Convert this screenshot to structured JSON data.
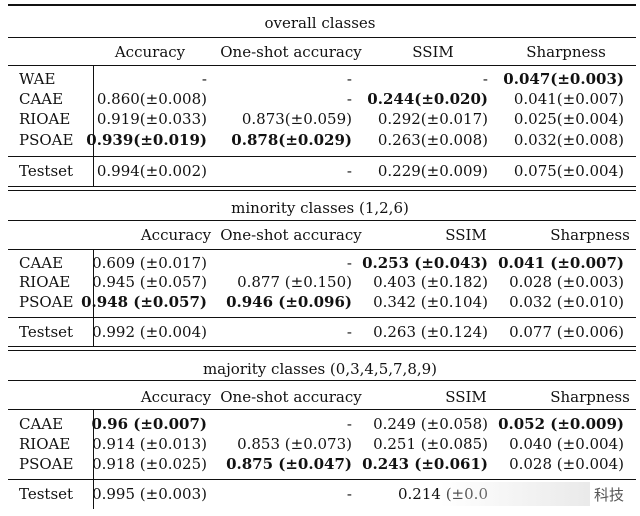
{
  "sections": [
    {
      "title": "overall classes",
      "headers": [
        "",
        "Accuracy",
        "One-shot accuracy",
        "SSIM",
        "Sharpness"
      ],
      "rows": [
        {
          "name": "WAE",
          "cells": [
            {
              "v": "-",
              "b": false
            },
            {
              "v": "-",
              "b": false
            },
            {
              "v": "-",
              "b": false
            },
            {
              "v": "0.047(±0.003)",
              "b": true
            }
          ]
        },
        {
          "name": "CAAE",
          "cells": [
            {
              "v": "0.860(±0.008)",
              "b": false
            },
            {
              "v": "-",
              "b": false
            },
            {
              "v": "0.244(±0.020)",
              "b": true
            },
            {
              "v": "0.041(±0.007)",
              "b": false
            }
          ]
        },
        {
          "name": "RIOAE",
          "cells": [
            {
              "v": "0.919(±0.033)",
              "b": false
            },
            {
              "v": "0.873(±0.059)",
              "b": false
            },
            {
              "v": "0.292(±0.017)",
              "b": false
            },
            {
              "v": "0.025(±0.004)",
              "b": false
            }
          ]
        },
        {
          "name": "PSOAE",
          "cells": [
            {
              "v": "0.939(±0.019)",
              "b": true
            },
            {
              "v": "0.878(±0.029)",
              "b": true
            },
            {
              "v": "0.263(±0.008)",
              "b": false
            },
            {
              "v": "0.032(±0.008)",
              "b": false
            }
          ]
        }
      ],
      "testset": {
        "name": "Testset",
        "cells": [
          {
            "v": "0.994(±0.002)",
            "b": false
          },
          {
            "v": "-",
            "b": false
          },
          {
            "v": "0.229(±0.009)",
            "b": false
          },
          {
            "v": "0.075(±0.004)",
            "b": false
          }
        ]
      }
    },
    {
      "title": "minority classes (1,2,6)",
      "headers": [
        "",
        "Accuracy",
        "One-shot accuracy",
        "SSIM",
        "Sharpness"
      ],
      "rows": [
        {
          "name": "CAAE",
          "cells": [
            {
              "v": "0.609 (±0.017)",
              "b": false
            },
            {
              "v": "-",
              "b": false
            },
            {
              "v": "0.253 (±0.043)",
              "b": true
            },
            {
              "v": "0.041 (±0.007)",
              "b": true
            }
          ]
        },
        {
          "name": "RIOAE",
          "cells": [
            {
              "v": "0.945 (±0.057)",
              "b": false
            },
            {
              "v": "0.877 (±0.150)",
              "b": false
            },
            {
              "v": "0.403 (±0.182)",
              "b": false
            },
            {
              "v": "0.028 (±0.003)",
              "b": false
            }
          ]
        },
        {
          "name": "PSOAE",
          "cells": [
            {
              "v": "0.948 (±0.057)",
              "b": true
            },
            {
              "v": "0.946 (±0.096)",
              "b": true
            },
            {
              "v": "0.342 (±0.104)",
              "b": false
            },
            {
              "v": "0.032 (±0.010)",
              "b": false
            }
          ]
        }
      ],
      "testset": {
        "name": "Testset",
        "cells": [
          {
            "v": "0.992 (±0.004)",
            "b": false
          },
          {
            "v": "-",
            "b": false
          },
          {
            "v": "0.263 (±0.124)",
            "b": false
          },
          {
            "v": "0.077 (±0.006)",
            "b": false
          }
        ]
      }
    },
    {
      "title": "majority classes (0,3,4,5,7,8,9)",
      "headers": [
        "",
        "Accuracy",
        "One-shot accuracy",
        "SSIM",
        "Sharpness"
      ],
      "rows": [
        {
          "name": "CAAE",
          "cells": [
            {
              "v": "0.96 (±0.007)",
              "b": true
            },
            {
              "v": "-",
              "b": false
            },
            {
              "v": "0.249 (±0.058)",
              "b": false
            },
            {
              "v": "0.052 (±0.009)",
              "b": true
            }
          ]
        },
        {
          "name": "RIOAE",
          "cells": [
            {
              "v": "0.914 (±0.013)",
              "b": false
            },
            {
              "v": "0.853 (±0.073)",
              "b": false
            },
            {
              "v": "0.251 (±0.085)",
              "b": false
            },
            {
              "v": "0.040 (±0.004)",
              "b": false
            }
          ]
        },
        {
          "name": "PSOAE",
          "cells": [
            {
              "v": "0.918 (±0.025)",
              "b": false
            },
            {
              "v": "0.875 (±0.047)",
              "b": true
            },
            {
              "v": "0.243 (±0.061)",
              "b": true
            },
            {
              "v": "0.028 (±0.004)",
              "b": false
            }
          ]
        }
      ],
      "testset": {
        "name": "Testset",
        "cells": [
          {
            "v": "0.995 (±0.003)",
            "b": false
          },
          {
            "v": "-",
            "b": false
          },
          {
            "v": "0.214 (±0.0",
            "b": false
          },
          {
            "v": "",
            "b": false
          }
        ]
      }
    }
  ],
  "watermark": "科技"
}
